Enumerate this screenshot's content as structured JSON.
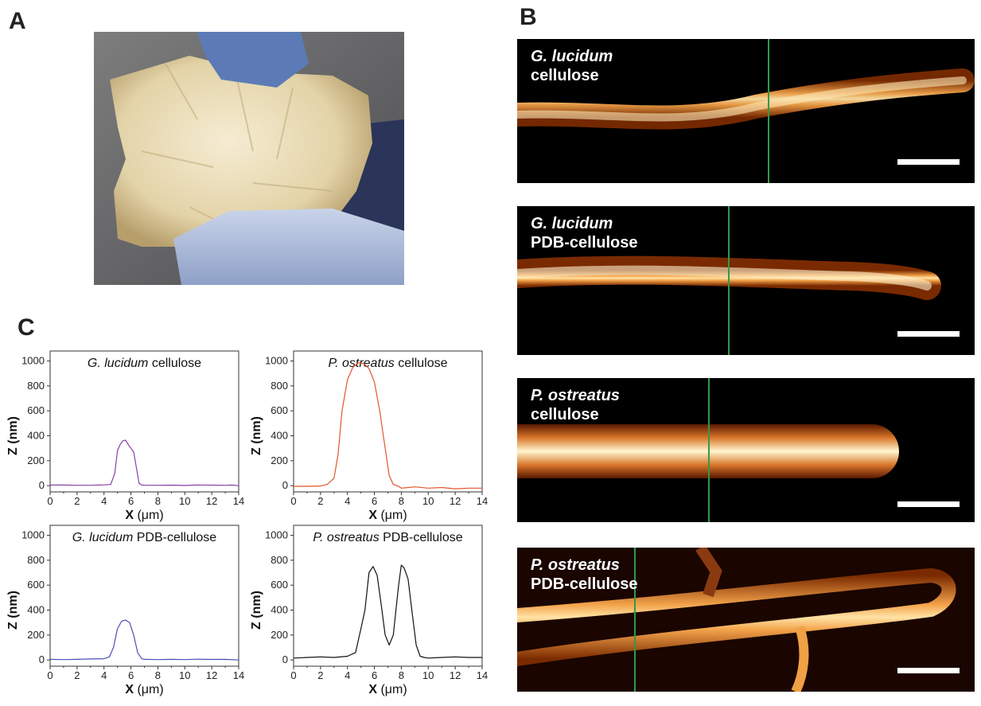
{
  "panels": {
    "a": "A",
    "b": "B",
    "c": "C"
  },
  "afm_images": [
    {
      "species": "G. lucidum",
      "material": "cellulose"
    },
    {
      "species": "G. lucidum",
      "material": "PDB-cellulose"
    },
    {
      "species": "P. ostreatus",
      "material": "cellulose"
    },
    {
      "species": "P. ostreatus",
      "material": "PDB-cellulose"
    }
  ],
  "chart_data": [
    {
      "type": "line",
      "title_species": "G. lucidum",
      "title_material": "cellulose",
      "xlabel_main": "X",
      "xlabel_unit": "(μm)",
      "ylabel": "Z (nm)",
      "xlim": [
        0,
        14
      ],
      "ylim": [
        -50,
        1080
      ],
      "xticks": [
        "0",
        "2",
        "4",
        "6",
        "8",
        "10",
        "12",
        "14"
      ],
      "yticks": [
        "0",
        "200",
        "400",
        "600",
        "800",
        "1000"
      ],
      "color": "#8b3fa8",
      "x": [
        0,
        1,
        2,
        3,
        4,
        4.5,
        4.8,
        5.0,
        5.2,
        5.4,
        5.6,
        5.8,
        6.0,
        6.2,
        6.4,
        6.6,
        6.8,
        7.0,
        8,
        9,
        10,
        11,
        12,
        13,
        13.5,
        14
      ],
      "y": [
        5,
        5,
        3,
        3,
        6,
        10,
        100,
        280,
        330,
        360,
        365,
        330,
        300,
        270,
        150,
        20,
        5,
        3,
        3,
        4,
        2,
        5,
        4,
        3,
        5,
        0
      ]
    },
    {
      "type": "line",
      "title_species": "P. ostreatus",
      "title_material": "cellulose",
      "xlabel_main": "X",
      "xlabel_unit": "(μm)",
      "ylabel": "Z (nm)",
      "xlim": [
        0,
        14
      ],
      "ylim": [
        -50,
        1080
      ],
      "xticks": [
        "0",
        "2",
        "4",
        "6",
        "8",
        "10",
        "12",
        "14"
      ],
      "yticks": [
        "0",
        "200",
        "400",
        "600",
        "800",
        "1000"
      ],
      "color": "#e2562a",
      "x": [
        0,
        1,
        2,
        2.5,
        3.0,
        3.3,
        3.6,
        4.0,
        4.4,
        4.8,
        5.2,
        5.6,
        6.0,
        6.4,
        6.8,
        7.1,
        7.4,
        7.8,
        8.0,
        8.5,
        9,
        10,
        11,
        12,
        13,
        14
      ],
      "y": [
        -5,
        -5,
        -3,
        10,
        60,
        250,
        600,
        850,
        950,
        985,
        980,
        940,
        830,
        600,
        300,
        80,
        10,
        -5,
        -20,
        -15,
        -10,
        -20,
        -15,
        -25,
        -20,
        -20
      ]
    },
    {
      "type": "line",
      "title_species": "G. lucidum",
      "title_material": "PDB-cellulose",
      "xlabel_main": "X",
      "xlabel_unit": "(μm)",
      "ylabel": "Z (nm)",
      "xlim": [
        0,
        14
      ],
      "ylim": [
        -50,
        1080
      ],
      "xticks": [
        "0",
        "2",
        "4",
        "6",
        "8",
        "10",
        "12",
        "14"
      ],
      "yticks": [
        "0",
        "200",
        "400",
        "600",
        "800",
        "1000"
      ],
      "color": "#4b4fb5",
      "x": [
        0,
        1,
        2,
        3,
        4.0,
        4.4,
        4.7,
        5.0,
        5.3,
        5.6,
        5.9,
        6.2,
        6.5,
        6.8,
        7.0,
        8,
        9,
        10,
        11,
        12,
        13,
        14
      ],
      "y": [
        5,
        3,
        5,
        8,
        10,
        25,
        100,
        250,
        310,
        320,
        300,
        200,
        60,
        10,
        5,
        3,
        5,
        3,
        6,
        4,
        5,
        0
      ]
    },
    {
      "type": "line",
      "title_species": "P. ostreatus",
      "title_material": "PDB-cellulose",
      "xlabel_main": "X",
      "xlabel_unit": "(μm)",
      "ylabel": "Z (nm)",
      "xlim": [
        0,
        14
      ],
      "ylim": [
        -50,
        1080
      ],
      "xticks": [
        "0",
        "2",
        "4",
        "6",
        "8",
        "10",
        "12",
        "14"
      ],
      "yticks": [
        "0",
        "200",
        "400",
        "600",
        "800",
        "1000"
      ],
      "color": "#111111",
      "x": [
        0,
        1,
        2,
        3,
        4.0,
        4.6,
        5.0,
        5.3,
        5.6,
        5.9,
        6.2,
        6.5,
        6.8,
        7.1,
        7.4,
        7.8,
        8.0,
        8.2,
        8.5,
        8.8,
        9.1,
        9.4,
        9.7,
        10,
        11,
        12,
        13,
        14
      ],
      "y": [
        15,
        20,
        25,
        20,
        30,
        60,
        250,
        400,
        700,
        750,
        680,
        450,
        200,
        120,
        200,
        600,
        760,
        740,
        650,
        380,
        120,
        30,
        20,
        15,
        20,
        25,
        20,
        20
      ]
    }
  ]
}
